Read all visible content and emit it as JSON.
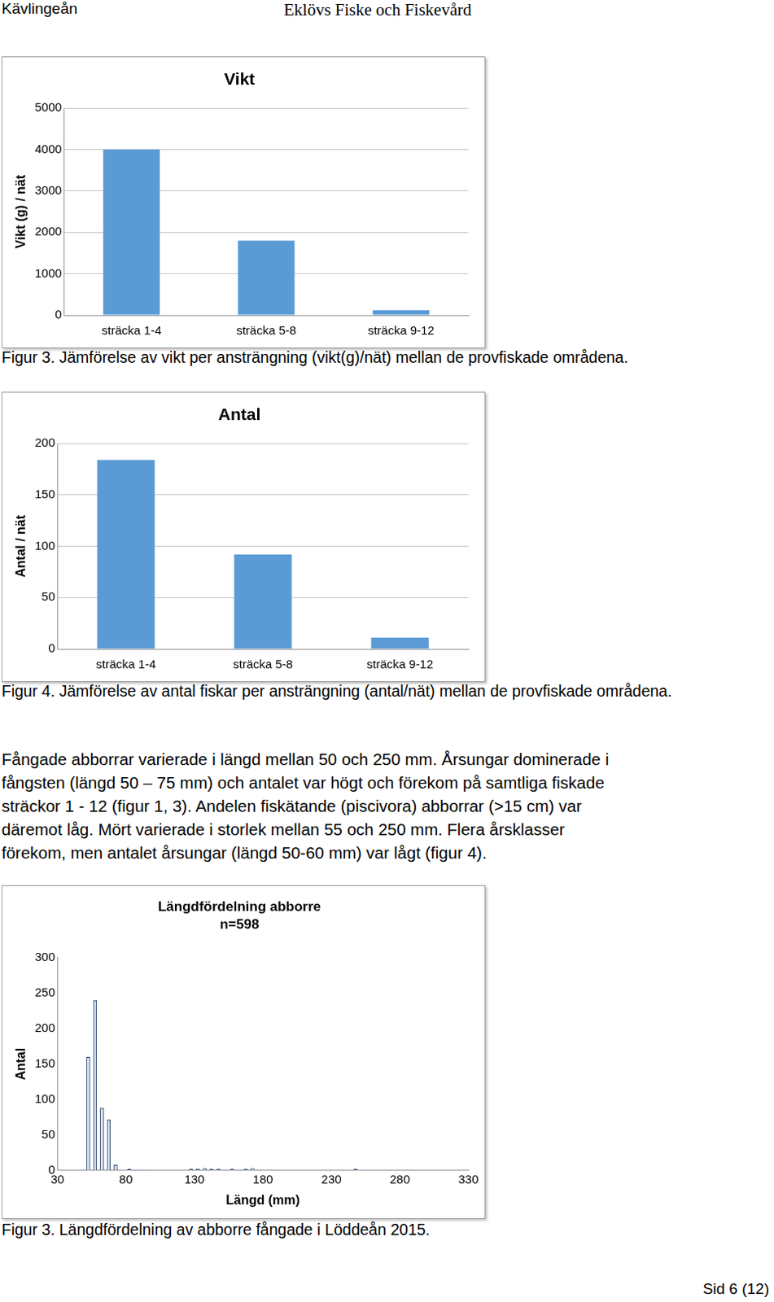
{
  "header": {
    "left": "Kävlingeån",
    "center": "Eklövs Fiske och Fiskevård"
  },
  "chart_data": [
    {
      "type": "bar",
      "title": "Vikt",
      "y_label": "Vikt (g) / nät",
      "categories": [
        "sträcka 1-4",
        "sträcka 5-8",
        "sträcka 9-12"
      ],
      "values": [
        4000,
        1800,
        120
      ],
      "color": "#5b9bd5",
      "ylim": [
        0,
        5000
      ],
      "yticks": [
        0,
        1000,
        2000,
        3000,
        4000,
        5000
      ],
      "grid": true
    },
    {
      "type": "bar",
      "title": "Antal",
      "y_label": "Antal / nät",
      "categories": [
        "sträcka 1-4",
        "sträcka 5-8",
        "sträcka 9-12"
      ],
      "values": [
        184,
        92,
        11
      ],
      "color": "#5b9bd5",
      "ylim": [
        0,
        200
      ],
      "yticks": [
        0,
        50,
        100,
        150,
        200
      ],
      "grid": true
    },
    {
      "type": "histogram",
      "title": "Längdfördelning abborre",
      "subtitle": "n=598",
      "x_label": "Längd (mm)",
      "y_label": "Antal",
      "bins": [
        30,
        35,
        40,
        45,
        50,
        55,
        60,
        65,
        70,
        75,
        80,
        85,
        90,
        95,
        100,
        105,
        110,
        115,
        120,
        125,
        130,
        135,
        140,
        145,
        150,
        155,
        160,
        165,
        170,
        175,
        180,
        185,
        190,
        195,
        200,
        205,
        210,
        215,
        220,
        225,
        230,
        235,
        240,
        245,
        250,
        255,
        260,
        265,
        270,
        275,
        280,
        285,
        290,
        295,
        300,
        305,
        310,
        315,
        320,
        325,
        330
      ],
      "counts": [
        0,
        0,
        0,
        0,
        160,
        240,
        88,
        72,
        8,
        0,
        2,
        1,
        1,
        0,
        0,
        0,
        0,
        0,
        0,
        2,
        2,
        3,
        2,
        2,
        1,
        2,
        1,
        2,
        3,
        1,
        0,
        1,
        0,
        0,
        0,
        0,
        0,
        0,
        0,
        1,
        0,
        1,
        0,
        2,
        0,
        0,
        0,
        0,
        0,
        0,
        0,
        0,
        0,
        0,
        0,
        0,
        0,
        0,
        0,
        0
      ],
      "color": "#dce6f2",
      "xlim": [
        30,
        330
      ],
      "xticks": [
        30,
        80,
        130,
        180,
        230,
        280,
        330
      ],
      "ylim": [
        0,
        300
      ],
      "yticks": [
        0,
        50,
        100,
        150,
        200,
        250,
        300
      ],
      "grid": false
    }
  ],
  "captions": [
    "Figur 3. Jämförelse av vikt per ansträngning (vikt(g)/nät) mellan de provfiskade områdena.",
    "Figur 4. Jämförelse av antal fiskar per ansträngning (antal/nät) mellan de provfiskade områdena.",
    "Figur 3. Längdfördelning av abborre fångade i Löddeån 2015."
  ],
  "paragraph": [
    "Fångade abborrar varierade i längd mellan 50 och 250 mm. Årsungar dominerade i",
    "fångsten (längd 50 – 75 mm) och antalet var högt och förekom på samtliga fiskade",
    "sträckor 1 - 12 (figur 1, 3). Andelen fiskätande (piscivora) abborrar (>15 cm) var",
    "däremot låg. Mört varierade i storlek mellan 55 och 250 mm. Flera årsklasser",
    "förekom, men antalet årsungar (längd 50-60 mm) var lågt (figur 4)."
  ],
  "footer": "Sid 6 (12)"
}
